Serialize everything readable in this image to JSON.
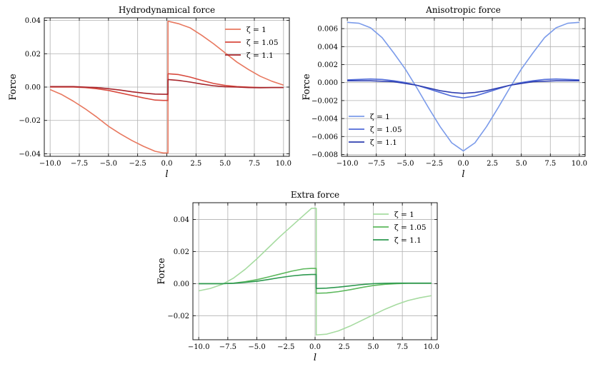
{
  "chart_data": [
    {
      "type": "line",
      "title": "Hydrodynamical force",
      "xlabel": "l",
      "ylabel": "Force",
      "xlim": [
        -10.5,
        10.5
      ],
      "ylim": [
        -0.0415,
        0.0415
      ],
      "xticks": [
        -10,
        -7.5,
        -5,
        -2.5,
        0,
        2.5,
        5,
        7.5,
        10
      ],
      "xtick_labels": [
        "−10.0",
        "−7.5",
        "−5.0",
        "−2.5",
        "0.0",
        "2.5",
        "5.0",
        "7.5",
        "10.0"
      ],
      "yticks": [
        -0.04,
        -0.02,
        0,
        0.02,
        0.04
      ],
      "ytick_labels": [
        "−0.04",
        "−0.02",
        "0.00",
        "0.02",
        "0.04"
      ],
      "grid": true,
      "legend_position": "top-right",
      "series": [
        {
          "name": "ζ = 1",
          "color": "#e8785f",
          "x": [
            -10,
            -9,
            -8,
            -7,
            -6,
            -5,
            -4,
            -3,
            -2,
            -1,
            -0.3,
            -0.3,
            0.1,
            0.1,
            1,
            2,
            3,
            4,
            5,
            6,
            7,
            8,
            9,
            10
          ],
          "y": [
            -0.0015,
            -0.0045,
            -0.0085,
            -0.013,
            -0.018,
            -0.0235,
            -0.028,
            -0.032,
            -0.0355,
            -0.0385,
            -0.0395,
            -0.0395,
            -0.0395,
            0.0395,
            0.038,
            0.0355,
            0.031,
            0.026,
            0.0205,
            0.015,
            0.0105,
            0.0065,
            0.0035,
            0.0012
          ]
        },
        {
          "name": "ζ = 1.05",
          "color": "#d84a3e",
          "x": [
            -10,
            -8,
            -7,
            -6,
            -5,
            -4,
            -3,
            -2,
            -1,
            -0.3,
            -0.3,
            0.1,
            0.1,
            1,
            2,
            3,
            4,
            5,
            6,
            7,
            8,
            9,
            10
          ],
          "y": [
            0,
            0,
            -0.0003,
            -0.001,
            -0.002,
            -0.0035,
            -0.005,
            -0.0065,
            -0.0078,
            -0.008,
            -0.008,
            -0.008,
            0.008,
            0.0075,
            0.006,
            0.004,
            0.0022,
            0.001,
            0.0003,
            0,
            -0.0003,
            -0.0003,
            -0.0003
          ]
        },
        {
          "name": "ζ = 1.1",
          "color": "#a8252b",
          "x": [
            -10,
            -8,
            -6,
            -5,
            -4,
            -3,
            -2,
            -1,
            -0.3,
            -0.3,
            0.1,
            0.1,
            1,
            2,
            3,
            4,
            5,
            6,
            7,
            8,
            9,
            10
          ],
          "y": [
            0.0003,
            0.0003,
            -0.0003,
            -0.001,
            -0.0018,
            -0.0028,
            -0.0036,
            -0.0042,
            -0.0043,
            -0.0043,
            -0.0043,
            0.0045,
            0.004,
            0.003,
            0.0018,
            0.0008,
            0.0002,
            0,
            -0.0003,
            -0.0004,
            -0.0003,
            -0.0003
          ]
        }
      ]
    },
    {
      "type": "line",
      "title": "Anisotropic force",
      "xlabel": "l",
      "ylabel": "Force",
      "xlim": [
        -10.5,
        10.5
      ],
      "ylim": [
        -0.0082,
        0.0072
      ],
      "xticks": [
        -10,
        -7.5,
        -5,
        -2.5,
        0,
        2.5,
        5,
        7.5,
        10
      ],
      "xtick_labels": [
        "−10.0",
        "−7.5",
        "−5.0",
        "−2.5",
        "0.0",
        "2.5",
        "5.0",
        "7.5",
        "10.0"
      ],
      "yticks": [
        -0.008,
        -0.006,
        -0.004,
        -0.002,
        0,
        0.002,
        0.004,
        0.006
      ],
      "ytick_labels": [
        "−0.008",
        "−0.006",
        "−0.004",
        "−0.002",
        "0.000",
        "0.002",
        "0.004",
        "0.006"
      ],
      "grid": true,
      "legend_position": "bottom-left",
      "series": [
        {
          "name": "ζ = 1",
          "color": "#7b9bea",
          "x": [
            -10,
            -9,
            -8,
            -7,
            -6,
            -5,
            -4,
            -3,
            -2,
            -1,
            0,
            1,
            2,
            3,
            4,
            5,
            6,
            7,
            8,
            9,
            10
          ],
          "y": [
            0.0067,
            0.0066,
            0.0061,
            0.005,
            0.0033,
            0.0015,
            -0.0006,
            -0.0028,
            -0.0049,
            -0.0067,
            -0.0076,
            -0.0067,
            -0.0049,
            -0.0028,
            -0.0006,
            0.0015,
            0.0033,
            0.005,
            0.0061,
            0.0066,
            0.0067
          ]
        },
        {
          "name": "ζ = 1.05",
          "color": "#4f6ad8",
          "x": [
            -10,
            -9,
            -8,
            -7,
            -6,
            -5,
            -4,
            -3,
            -2,
            -1,
            0,
            1,
            2,
            3,
            4,
            5,
            6,
            7,
            8,
            9,
            10
          ],
          "y": [
            0.0003,
            0.00035,
            0.0004,
            0.00035,
            0.0002,
            0,
            -0.0003,
            -0.0007,
            -0.0011,
            -0.0015,
            -0.0017,
            -0.0015,
            -0.0011,
            -0.0007,
            -0.0003,
            0,
            0.0002,
            0.00035,
            0.0004,
            0.00035,
            0.0003
          ]
        },
        {
          "name": "ζ = 1.1",
          "color": "#2f3fb0",
          "x": [
            -10,
            -9,
            -8,
            -7,
            -6,
            -5,
            -4,
            -3,
            -2,
            -1,
            0,
            1,
            2,
            3,
            4,
            5,
            6,
            7,
            8,
            9,
            10
          ],
          "y": [
            0.0002,
            0.0002,
            0.0002,
            0.00015,
            0.0001,
            -0.0001,
            -0.0003,
            -0.0006,
            -0.0009,
            -0.0011,
            -0.0012,
            -0.0011,
            -0.0009,
            -0.0006,
            -0.0003,
            -0.0001,
            0.0001,
            0.00015,
            0.0002,
            0.0002,
            0.0002
          ]
        }
      ]
    },
    {
      "type": "line",
      "title": "Extra force",
      "xlabel": "l",
      "ylabel": "Force",
      "xlim": [
        -10.5,
        10.5
      ],
      "ylim": [
        -0.035,
        0.0505
      ],
      "xticks": [
        -10,
        -7.5,
        -5,
        -2.5,
        0,
        2.5,
        5,
        7.5,
        10
      ],
      "xtick_labels": [
        "−10.0",
        "−7.5",
        "−5.0",
        "−2.5",
        "0.0",
        "2.5",
        "5.0",
        "7.5",
        "10.0"
      ],
      "yticks": [
        -0.02,
        0,
        0.02,
        0.04
      ],
      "ytick_labels": [
        "−0.02",
        "0.00",
        "0.02",
        "0.04"
      ],
      "grid": true,
      "legend_position": "top-right",
      "series": [
        {
          "name": "ζ = 1",
          "color": "#a6dba0",
          "x": [
            -10,
            -9,
            -8,
            -7,
            -6,
            -5,
            -4,
            -3,
            -2,
            -1,
            -0.3,
            -0.3,
            0.1,
            0.1,
            1,
            2,
            3,
            4,
            5,
            6,
            7,
            8,
            9,
            10
          ],
          "y": [
            -0.0045,
            -0.003,
            -0.0005,
            0.0035,
            0.009,
            0.0155,
            0.0225,
            0.0295,
            0.036,
            0.0425,
            0.047,
            0.047,
            0.047,
            -0.032,
            -0.0315,
            -0.0295,
            -0.0265,
            -0.023,
            -0.0195,
            -0.016,
            -0.013,
            -0.0105,
            -0.0088,
            -0.0075
          ]
        },
        {
          "name": "ζ = 1.05",
          "color": "#5cb85c",
          "x": [
            -10,
            -8,
            -7,
            -6,
            -5,
            -4,
            -3,
            -2,
            -1,
            -0.3,
            -0.3,
            0.1,
            0.1,
            1,
            2,
            3,
            4,
            5,
            6,
            7,
            8,
            9,
            10
          ],
          "y": [
            0,
            0,
            0.0003,
            0.0012,
            0.0025,
            0.0042,
            0.006,
            0.0078,
            0.0092,
            0.0095,
            0.0095,
            0.0095,
            -0.006,
            -0.0058,
            -0.005,
            -0.0038,
            -0.0024,
            -0.0012,
            -0.0004,
            0,
            0.0002,
            0.0002,
            0.0002
          ]
        },
        {
          "name": "ζ = 1.1",
          "color": "#2e9950",
          "x": [
            -10,
            -8,
            -7,
            -6,
            -5,
            -4,
            -3,
            -2,
            -1,
            -0.3,
            -0.3,
            0.1,
            0.1,
            1,
            2,
            3,
            4,
            5,
            6,
            7,
            8,
            9,
            10
          ],
          "y": [
            0,
            0,
            0.0002,
            0.0008,
            0.0015,
            0.0026,
            0.0038,
            0.0048,
            0.0055,
            0.0057,
            0.0057,
            0.0057,
            -0.003,
            -0.0028,
            -0.0022,
            -0.0014,
            -0.0006,
            0,
            0.0002,
            0.0003,
            0.0003,
            0.0003,
            0.0003
          ]
        }
      ]
    }
  ]
}
